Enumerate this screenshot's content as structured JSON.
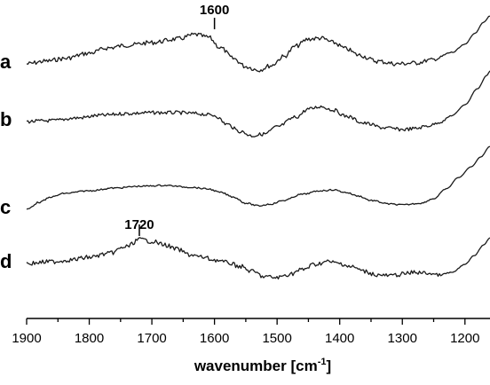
{
  "chart_data": {
    "type": "line",
    "xlabel": "wavenumber [cm",
    "xlabel_sup": "-1",
    "xlabel_close": "]",
    "xlim": [
      1900,
      1160
    ],
    "x_reversed": true,
    "x_ticks": [
      "1900",
      "1800",
      "1700",
      "1600",
      "1500",
      "1400",
      "1300",
      "1200"
    ],
    "y_axis_shown": false,
    "grid": false,
    "series": [
      {
        "name": "a",
        "points": [
          [
            1900,
            72
          ],
          [
            1870,
            69
          ],
          [
            1840,
            66
          ],
          [
            1800,
            60
          ],
          [
            1770,
            54
          ],
          [
            1740,
            51
          ],
          [
            1700,
            48
          ],
          [
            1660,
            44
          ],
          [
            1630,
            39
          ],
          [
            1610,
            42
          ],
          [
            1590,
            54
          ],
          [
            1570,
            66
          ],
          [
            1550,
            75
          ],
          [
            1530,
            79
          ],
          [
            1510,
            74
          ],
          [
            1490,
            64
          ],
          [
            1470,
            52
          ],
          [
            1450,
            44
          ],
          [
            1430,
            43
          ],
          [
            1410,
            48
          ],
          [
            1390,
            55
          ],
          [
            1370,
            62
          ],
          [
            1340,
            69
          ],
          [
            1310,
            72
          ],
          [
            1280,
            71
          ],
          [
            1250,
            67
          ],
          [
            1220,
            59
          ],
          [
            1200,
            50
          ],
          [
            1185,
            38
          ],
          [
            1170,
            25
          ],
          [
            1160,
            18
          ]
        ],
        "peaks": [
          {
            "x": 1600,
            "label": "1600"
          }
        ]
      },
      {
        "name": "b",
        "points": [
          [
            1900,
            137
          ],
          [
            1860,
            136
          ],
          [
            1820,
            133
          ],
          [
            1780,
            130
          ],
          [
            1740,
            128
          ],
          [
            1700,
            127
          ],
          [
            1660,
            127
          ],
          [
            1630,
            128
          ],
          [
            1600,
            130
          ],
          [
            1580,
            140
          ],
          [
            1560,
            148
          ],
          [
            1540,
            153
          ],
          [
            1520,
            151
          ],
          [
            1500,
            143
          ],
          [
            1470,
            132
          ],
          [
            1450,
            123
          ],
          [
            1430,
            120
          ],
          [
            1410,
            124
          ],
          [
            1390,
            131
          ],
          [
            1360,
            139
          ],
          [
            1330,
            144
          ],
          [
            1300,
            146
          ],
          [
            1280,
            145
          ],
          [
            1260,
            142
          ],
          [
            1240,
            138
          ],
          [
            1220,
            130
          ],
          [
            1200,
            118
          ],
          [
            1180,
            100
          ],
          [
            1165,
            85
          ],
          [
            1160,
            80
          ]
        ]
      },
      {
        "name": "c",
        "points": [
          [
            1900,
            236
          ],
          [
            1880,
            228
          ],
          [
            1860,
            222
          ],
          [
            1840,
            218
          ],
          [
            1800,
            215
          ],
          [
            1760,
            212
          ],
          [
            1720,
            210
          ],
          [
            1680,
            209
          ],
          [
            1640,
            211
          ],
          [
            1610,
            213
          ],
          [
            1590,
            217
          ],
          [
            1570,
            222
          ],
          [
            1550,
            229
          ],
          [
            1530,
            232
          ],
          [
            1510,
            230
          ],
          [
            1490,
            226
          ],
          [
            1460,
            219
          ],
          [
            1430,
            215
          ],
          [
            1410,
            214
          ],
          [
            1390,
            217
          ],
          [
            1370,
            221
          ],
          [
            1350,
            226
          ],
          [
            1320,
            230
          ],
          [
            1300,
            231
          ],
          [
            1270,
            229
          ],
          [
            1250,
            224
          ],
          [
            1230,
            213
          ],
          [
            1210,
            200
          ],
          [
            1190,
            188
          ],
          [
            1175,
            177
          ],
          [
            1160,
            165
          ]
        ]
      },
      {
        "name": "d",
        "points": [
          [
            1900,
            297
          ],
          [
            1860,
            295
          ],
          [
            1830,
            293
          ],
          [
            1800,
            290
          ],
          [
            1770,
            286
          ],
          [
            1740,
            278
          ],
          [
            1720,
            270
          ],
          [
            1700,
            272
          ],
          [
            1680,
            276
          ],
          [
            1660,
            281
          ],
          [
            1640,
            287
          ],
          [
            1620,
            290
          ],
          [
            1600,
            293
          ],
          [
            1580,
            296
          ],
          [
            1560,
            300
          ],
          [
            1540,
            306
          ],
          [
            1520,
            312
          ],
          [
            1500,
            313
          ],
          [
            1480,
            309
          ],
          [
            1460,
            304
          ],
          [
            1440,
            298
          ],
          [
            1420,
            295
          ],
          [
            1400,
            297
          ],
          [
            1380,
            301
          ],
          [
            1360,
            306
          ],
          [
            1340,
            310
          ],
          [
            1320,
            311
          ],
          [
            1300,
            309
          ],
          [
            1280,
            307
          ],
          [
            1260,
            308
          ],
          [
            1240,
            310
          ],
          [
            1220,
            307
          ],
          [
            1200,
            298
          ],
          [
            1185,
            288
          ],
          [
            1170,
            276
          ],
          [
            1160,
            268
          ]
        ],
        "peaks": [
          {
            "x": 1720,
            "label": "1720"
          }
        ]
      }
    ]
  }
}
